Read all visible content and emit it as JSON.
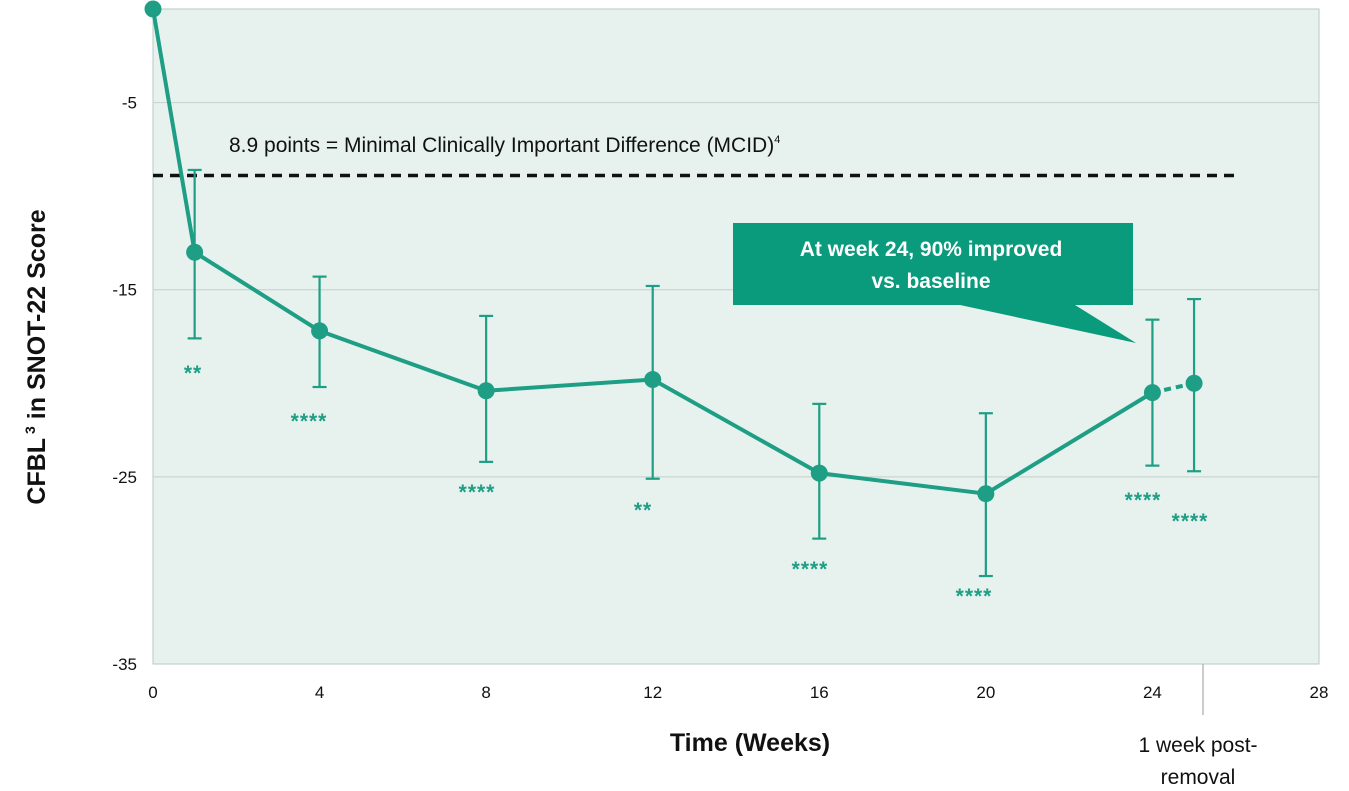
{
  "chart_data": {
    "type": "line",
    "xlabel": "Time (Weeks)",
    "ylabel": "CFBL",
    "ylabel_sup": "3",
    "ylabel_rest": " in SNOT-22 Score",
    "xlim": [
      0,
      28
    ],
    "ylim": [
      -35,
      0
    ],
    "x_ticks": [
      "0",
      "4",
      "8",
      "12",
      "16",
      "20",
      "24",
      "28"
    ],
    "y_ticks": [
      "-5",
      "-15",
      "-25",
      "-35"
    ],
    "grid": "horizontal",
    "series": [
      {
        "points": [
          {
            "x": 0,
            "y": 0
          },
          {
            "x": 1,
            "y": -13
          },
          {
            "x": 4,
            "y": -17.2
          },
          {
            "x": 8,
            "y": -20.4
          },
          {
            "x": 12,
            "y": -19.8
          },
          {
            "x": 16,
            "y": -24.8
          },
          {
            "x": 20,
            "y": -25.9
          },
          {
            "x": 24,
            "y": -20.5
          },
          {
            "x": 25,
            "y": -20.0
          }
        ],
        "error_bars": [
          null,
          {
            "low": -17.6,
            "high": -8.6
          },
          {
            "low": -20.2,
            "high": -14.3
          },
          {
            "low": -24.2,
            "high": -16.4
          },
          {
            "low": -25.1,
            "high": -14.8
          },
          {
            "low": -28.3,
            "high": -21.1
          },
          {
            "low": -30.3,
            "high": -21.6
          },
          {
            "low": -24.4,
            "high": -16.6
          },
          {
            "low": -24.7,
            "high": -15.5
          }
        ],
        "significance": [
          "",
          "**",
          "****",
          "****",
          "**",
          "****",
          "****",
          "****",
          "****"
        ]
      }
    ],
    "mcid": {
      "value": -8.9,
      "label": "8.9 points = Minimal Clinically Important Difference (MCID)",
      "label_sup": "4"
    },
    "callout": {
      "line1": "At week 24, 90% improved",
      "line2": "vs. baseline"
    },
    "post_removal_label": {
      "line1": "1 week post-",
      "line2": "removal"
    },
    "colors": {
      "series": "#1e9e84",
      "plot_bg": "#e7f2ef",
      "callout_bg": "#0a9a7c",
      "mcid_line": "#111111",
      "grid": "#c8d6d2"
    }
  }
}
